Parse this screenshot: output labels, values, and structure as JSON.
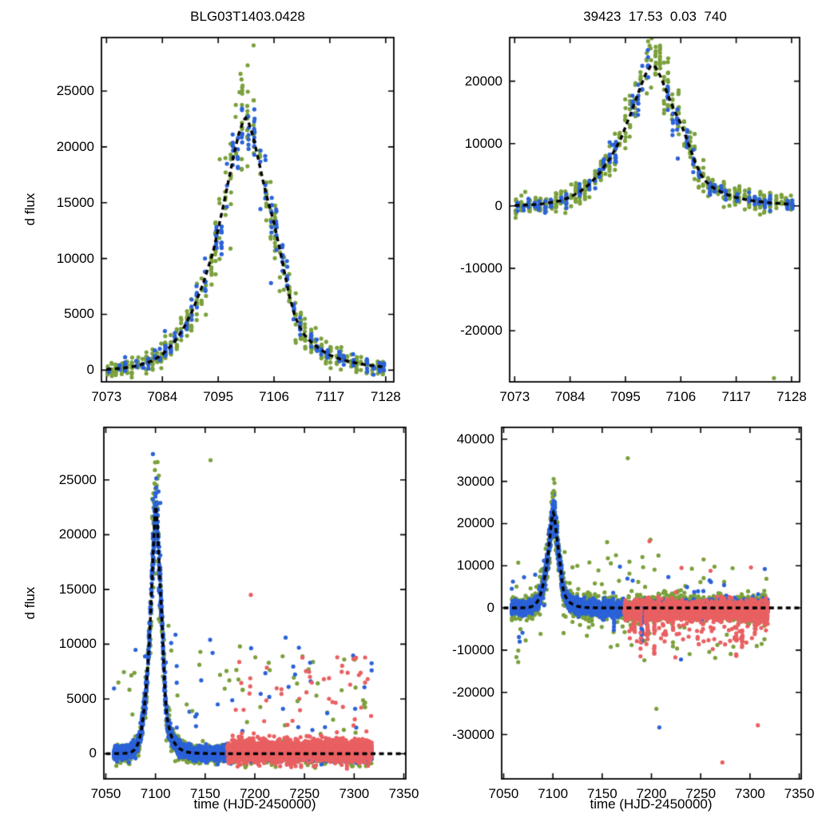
{
  "chart_data": {
    "type": "scatter",
    "figure": "microlensing light-curve fit, 2x2 panel grid",
    "marker": "filled-circle",
    "colors": {
      "green": "#7ba03c",
      "blue": "#2b62d8",
      "red": "#e96062",
      "model": "#000000",
      "background": "#ffffff"
    },
    "model_params": {
      "t0": 7100.4,
      "peak_flux": 22600,
      "style": "dashed-black"
    },
    "model_curve": [
      [
        7050,
        0
      ],
      [
        7060,
        5
      ],
      [
        7065,
        15
      ],
      [
        7070,
        40
      ],
      [
        7073,
        70
      ],
      [
        7076,
        160
      ],
      [
        7079,
        380
      ],
      [
        7082,
        820
      ],
      [
        7084,
        1400
      ],
      [
        7086,
        2300
      ],
      [
        7088,
        3600
      ],
      [
        7090,
        5400
      ],
      [
        7092,
        7700
      ],
      [
        7094,
        10600
      ],
      [
        7096,
        14700
      ],
      [
        7097,
        16900
      ],
      [
        7098,
        19100
      ],
      [
        7099,
        21100
      ],
      [
        7100,
        22400
      ],
      [
        7100.4,
        22600
      ],
      [
        7101,
        22200
      ],
      [
        7102,
        20700
      ],
      [
        7103,
        18700
      ],
      [
        7104,
        16600
      ],
      [
        7105,
        14800
      ],
      [
        7106,
        13200
      ],
      [
        7107,
        11100
      ],
      [
        7108,
        8900
      ],
      [
        7109,
        6700
      ],
      [
        7110,
        5000
      ],
      [
        7111,
        3900
      ],
      [
        7112,
        3150
      ],
      [
        7113,
        2650
      ],
      [
        7114,
        2250
      ],
      [
        7115,
        1900
      ],
      [
        7116,
        1600
      ],
      [
        7117,
        1350
      ],
      [
        7119,
        1000
      ],
      [
        7121,
        750
      ],
      [
        7124,
        480
      ],
      [
        7128,
        260
      ],
      [
        7132,
        140
      ],
      [
        7138,
        60
      ],
      [
        7150,
        15
      ],
      [
        7170,
        0
      ],
      [
        7352,
        0
      ]
    ],
    "panels": [
      {
        "id": "top-left",
        "title": "BLG03T1403.0428",
        "ylabel": "d flux",
        "xlabel": "",
        "xlim": [
          7072,
          7129.6
        ],
        "ylim": [
          -1050,
          29800
        ],
        "xticks": [
          7073,
          7084,
          7095,
          7106,
          7117,
          7128
        ],
        "yticks": [
          0,
          5000,
          10000,
          15000,
          20000,
          25000
        ],
        "series": [
          {
            "color": "green",
            "seed": 11,
            "t": [
              7073,
              7128.2
            ],
            "step": 1.0,
            "nMin": 4,
            "nMax": 12,
            "rel": 0.1,
            "abs": 380,
            "epochRel": 0.05,
            "follow": true
          },
          {
            "color": "blue",
            "seed": 12,
            "t": [
              7073.3,
              7128.2
            ],
            "step": 1.05,
            "presence": 0.82,
            "nMin": 3,
            "nMax": 9,
            "rel": 0.05,
            "abs": 260,
            "epochRel": 0.05,
            "follow": true
          }
        ],
        "outliers": {
          "green": [
            [
              7099.4,
              26550
            ],
            [
              7099.6,
              26050
            ],
            [
              7099.8,
              25500
            ],
            [
              7099.2,
              24900
            ],
            [
              7095.3,
              18900
            ]
          ],
          "blue": [
            [
              7092.4,
              10000
            ],
            [
              7105.4,
              7800
            ],
            [
              7084.5,
              3500
            ]
          ],
          "red": []
        },
        "spikes": {}
      },
      {
        "id": "top-right",
        "title": "39423  17.53  0.03  740",
        "ylabel": "",
        "xlabel": "",
        "xlim": [
          7072,
          7129.6
        ],
        "ylim": [
          -28200,
          27000
        ],
        "xticks": [
          7073,
          7084,
          7095,
          7106,
          7117,
          7128
        ],
        "yticks": [
          -20000,
          -10000,
          0,
          10000,
          20000
        ],
        "series": [
          {
            "color": "green",
            "seed": 21,
            "t": [
              7073,
              7128.2
            ],
            "step": 1.0,
            "nMin": 4,
            "nMax": 12,
            "rel": 0.1,
            "abs": 800,
            "epochRel": 0.05,
            "follow": true
          },
          {
            "color": "blue",
            "seed": 22,
            "t": [
              7073.3,
              7128.2
            ],
            "step": 1.05,
            "presence": 0.82,
            "nMin": 3,
            "nMax": 9,
            "rel": 0.05,
            "abs": 480,
            "epochRel": 0.05,
            "follow": true
          }
        ],
        "outliers": {
          "green": [
            [
              7124.5,
              -27600
            ],
            [
              7099.5,
              26400
            ],
            [
              7099.8,
              25700
            ],
            [
              7100.2,
              26900
            ]
          ],
          "blue": [
            [
              7092.4,
              9800
            ],
            [
              7105.4,
              7600
            ]
          ],
          "red": []
        },
        "spikes": {}
      },
      {
        "id": "bottom-left",
        "title": "",
        "ylabel": "d flux",
        "xlabel": "time (HJD-2450000)",
        "xlim": [
          7048,
          7352
        ],
        "ylim": [
          -2300,
          29800
        ],
        "xticks": [
          7050,
          7100,
          7150,
          7200,
          7250,
          7300,
          7350
        ],
        "yticks": [
          0,
          5000,
          10000,
          15000,
          20000,
          25000
        ],
        "series": [
          {
            "color": "green",
            "seed": 31,
            "t": [
              7058,
              7318
            ],
            "step": 1.0,
            "nMin": 3,
            "nMax": 9,
            "rel": 0.1,
            "abs": 430,
            "epochRel": 0.05,
            "follow": true,
            "tailProb": 0.035,
            "tailSign": "pos",
            "tailMin": 1500,
            "tailMax": 9000
          },
          {
            "color": "blue",
            "seed": 32,
            "t": [
              7058,
              7318
            ],
            "step": 0.7,
            "nMin": 4,
            "nMax": 14,
            "rel": 0.05,
            "abs": 300,
            "epochRel": 0.04,
            "follow": true,
            "tailProb": 0.012,
            "tailSign": "pos",
            "tailMin": 1500,
            "tailMax": 10000
          },
          {
            "color": "red",
            "seed": 33,
            "t": [
              7172,
              7318
            ],
            "step": 0.62,
            "nMin": 4,
            "nMax": 13,
            "center": 250,
            "abs": 500,
            "rel": 0,
            "follow": false,
            "tailProb": 0.02,
            "tailSign": "pos",
            "tailMin": 1200,
            "tailMax": 8500
          }
        ],
        "outliers": {
          "green": [
            [
              7155.4,
              26800
            ],
            [
              7165,
              7200
            ],
            [
              7185,
              9800
            ],
            [
              7200.5,
              8800
            ],
            [
              7214,
              8300
            ],
            [
              7228,
              8900
            ],
            [
              7243,
              4800
            ],
            [
              7262,
              5300
            ],
            [
              7290,
              8600
            ],
            [
              7310,
              4500
            ],
            [
              7137,
              3900
            ],
            [
              7099.6,
              26600
            ],
            [
              7099.4,
              25900
            ]
          ],
          "blue": [
            [
              7155,
              10400
            ],
            [
              7157.5,
              9200
            ],
            [
              7231,
              10600
            ],
            [
              7234,
              6100
            ],
            [
              7146,
              6700
            ],
            [
              7301,
              4100
            ]
          ],
          "red": [
            [
              7196,
              14500
            ],
            [
              7283,
              8800
            ],
            [
              7252,
              5600
            ],
            [
              7296,
              6300
            ],
            [
              7311,
              6500
            ]
          ]
        },
        "spikes": {}
      },
      {
        "id": "bottom-right",
        "title": "",
        "ylabel": "",
        "xlabel": "time (HJD-2450000)",
        "xlim": [
          7048,
          7352
        ],
        "ylim": [
          -40500,
          42800
        ],
        "xticks": [
          7050,
          7100,
          7150,
          7200,
          7250,
          7300,
          7350
        ],
        "yticks": [
          -30000,
          -20000,
          -10000,
          0,
          10000,
          20000,
          30000,
          40000
        ],
        "series": [
          {
            "color": "green",
            "seed": 41,
            "t": [
              7058,
              7318
            ],
            "step": 1.0,
            "nMin": 3,
            "nMax": 9,
            "rel": 0.1,
            "abs": 1500,
            "epochRel": 0.05,
            "follow": true,
            "tailProb": 0.05,
            "tailSign": "both",
            "tailMin": 2500,
            "tailMax": 12000
          },
          {
            "color": "blue",
            "seed": 42,
            "t": [
              7058,
              7318
            ],
            "step": 0.7,
            "nMin": 4,
            "nMax": 14,
            "rel": 0.05,
            "abs": 800,
            "epochRel": 0.04,
            "follow": true,
            "tailProb": 0.01,
            "tailSign": "both",
            "tailMin": 2500,
            "tailMax": 8000
          },
          {
            "color": "red",
            "seed": 43,
            "t": [
              7172,
              7318
            ],
            "step": 0.62,
            "nMin": 4,
            "nMax": 13,
            "center": -600,
            "abs": 1100,
            "rel": 0,
            "follow": false,
            "tailProb": 0.04,
            "tailSign": "neg",
            "tailMin": 2000,
            "tailMax": 8000
          }
        ],
        "outliers": {
          "green": [
            [
              7176,
              35500
            ],
            [
              7205,
              -23900
            ],
            [
              7155,
              15600
            ],
            [
              7164,
              12500
            ],
            [
              7241,
              9300
            ],
            [
              7199,
              16200
            ],
            [
              7137,
              10800
            ],
            [
              7226,
              -9600
            ],
            [
              7099.5,
              27200
            ],
            [
              7099.8,
              26300
            ]
          ],
          "blue": [
            [
              7208,
              -28300
            ],
            [
              7168,
              9800
            ],
            [
              7230,
              -12200
            ]
          ],
          "red": [
            [
              7272,
              -36600
            ],
            [
              7308,
              -27800
            ],
            [
              7198,
              15800
            ],
            [
              7230.5,
              9500
            ],
            [
              7260,
              8800
            ],
            [
              7301,
              9600
            ]
          ]
        },
        "spikes": {
          "red": [
            [
              7183,
              -8800
            ],
            [
              7189,
              -11500
            ],
            [
              7196,
              -7800
            ],
            [
              7203,
              -12800
            ],
            [
              7212,
              -6200
            ],
            [
              7222,
              -5300
            ],
            [
              7235,
              -4600
            ],
            [
              7286,
              -12600
            ],
            [
              7292,
              -9200
            ],
            [
              7305,
              -6800
            ]
          ],
          "blue": [
            [
              7151,
              -4300
            ],
            [
              7162,
              -5200
            ],
            [
              7190,
              -9800
            ]
          ]
        }
      }
    ]
  }
}
